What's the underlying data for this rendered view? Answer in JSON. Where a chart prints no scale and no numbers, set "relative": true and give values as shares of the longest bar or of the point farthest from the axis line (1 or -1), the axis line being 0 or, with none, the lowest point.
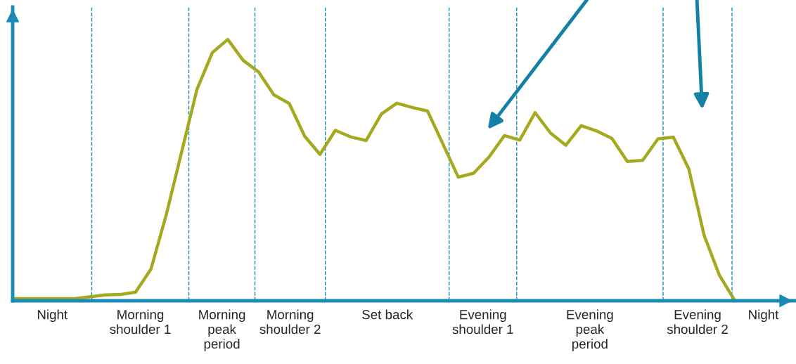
{
  "chart_data": {
    "type": "line",
    "relative": true,
    "categories": [
      null,
      null,
      null,
      null,
      null,
      null,
      null,
      null,
      null,
      null,
      null,
      null,
      null,
      null,
      null,
      null,
      null,
      null,
      null,
      null,
      null,
      null,
      null,
      null,
      null,
      null,
      null,
      null,
      null,
      null,
      null,
      null,
      null,
      null,
      null,
      null,
      null,
      null,
      null,
      null,
      null,
      null,
      null,
      null,
      null,
      null,
      null,
      null
    ],
    "series": [
      {
        "color": "#a5a920",
        "values": [
          0.008,
          0.008,
          0.008,
          0.008,
          0.008,
          0.015,
          0.022,
          0.024,
          0.033,
          0.121,
          0.33,
          0.57,
          0.81,
          0.95,
          1.0,
          0.92,
          0.876,
          0.788,
          0.755,
          0.63,
          0.56,
          0.652,
          0.627,
          0.613,
          0.715,
          0.756,
          0.74,
          0.726,
          0.6,
          0.473,
          0.488,
          0.55,
          0.632,
          0.615,
          0.72,
          0.642,
          0.595,
          0.67,
          0.65,
          0.621,
          0.533,
          0.537,
          0.62,
          0.626,
          0.505,
          0.25,
          0.097,
          0
        ]
      }
    ],
    "annotations": [
      "Night",
      "Morning\nshoulder 1",
      "Morning\npeak\nperiod",
      "Morning\nshoulder 2",
      "Set back",
      "Evening\nshoulder 1",
      "Evening\npeak\nperiod",
      "Evening\nshoulder 2",
      "Night"
    ],
    "legend": false,
    "marker": "none",
    "line_style": "solid"
  }
}
